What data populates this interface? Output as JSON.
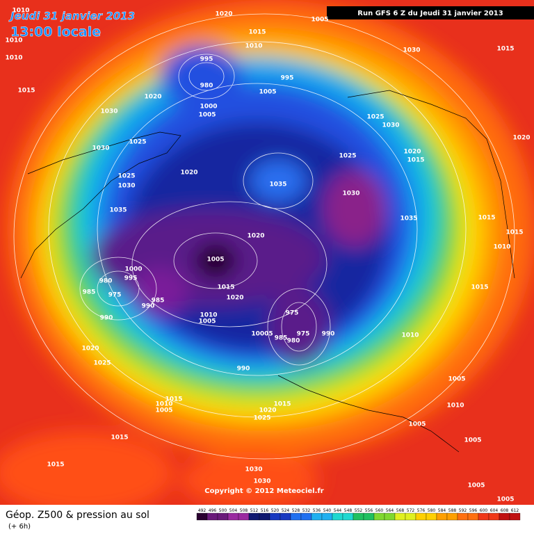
{
  "header": {
    "date": "Jeudi 31 janvier 2013",
    "time": "13:00 locale",
    "run": "Run GFS 6 Z du Jeudi 31 janvier 2013"
  },
  "isobar_labels": [
    1010,
    1020,
    1005,
    1015,
    1010,
    1010,
    1010,
    1030,
    1015,
    995,
    995,
    980,
    1005,
    1015,
    1020,
    1000,
    1005,
    1030,
    1025,
    1030,
    1020,
    1030,
    1025,
    1025,
    1020,
    1015,
    1020,
    1025,
    1030,
    1035,
    1030,
    1035,
    1035,
    1015,
    1015,
    1020,
    1010,
    1005,
    1000,
    995,
    980,
    985,
    975,
    1015,
    1015,
    985,
    990,
    1020,
    1010,
    1005,
    975,
    990,
    10005,
    985,
    980,
    975,
    990,
    1010,
    1020,
    1025,
    990,
    1005,
    1015,
    1010,
    1005,
    1015,
    1010,
    1020,
    1025,
    1005,
    1015,
    1005,
    1015,
    1030,
    1030,
    1005,
    1005
  ],
  "copyright": "Copyright © 2012 Meteociel.fr",
  "legend": {
    "title": "Géop. Z500 & pression au sol",
    "lead": "(+ 6h)",
    "scale": [
      492,
      496,
      500,
      504,
      508,
      512,
      516,
      520,
      524,
      528,
      532,
      536,
      540,
      544,
      548,
      552,
      556,
      560,
      564,
      568,
      572,
      576,
      580,
      584,
      588,
      592,
      596,
      600,
      604,
      608,
      612
    ]
  }
}
